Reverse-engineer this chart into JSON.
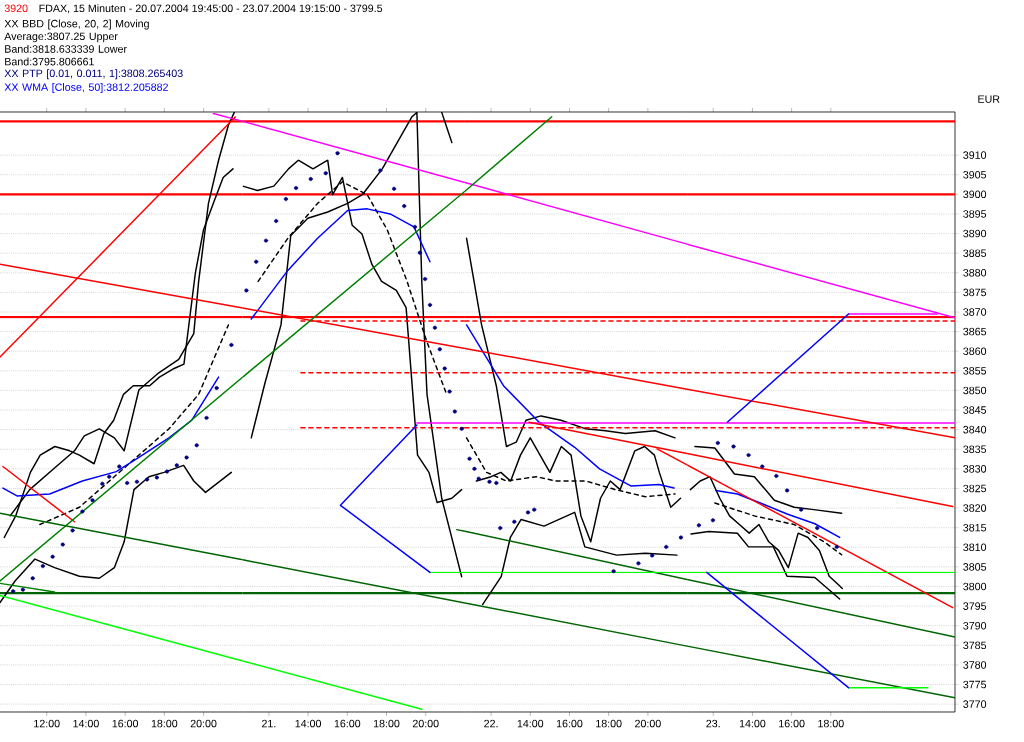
{
  "chart_data": [
    {
      "type": "line",
      "title": "FDAX, 15 Minuten - 20.07.2004 19:45:00 - 23.07.2004 19:15:00 - 3799.5",
      "annotations": [
        "3920"
      ],
      "legend": "top left",
      "xlim": [
        "2004-07-20T09:37",
        "2004-07-20T22:00"
      ],
      "ylim": [
        3768,
        3921
      ],
      "xticks": [
        {
          "value": "2004-07-20T12:00",
          "label": "12:00"
        },
        {
          "value": "2004-07-20T14:00",
          "label": "14:00"
        },
        {
          "value": "2004-07-20T16:00",
          "label": "16:00"
        },
        {
          "value": "2004-07-20T18:00",
          "label": "18:00"
        },
        {
          "value": "2004-07-20T20:00",
          "label": "20:00"
        }
      ],
      "yticks": [
        3770,
        3775,
        3780,
        3785,
        3790,
        3795,
        3800,
        3805,
        3810,
        3815,
        3820,
        3825,
        3830,
        3835,
        3840,
        3845,
        3850,
        3855,
        3860,
        3865,
        3870,
        3875,
        3880,
        3885,
        3890,
        3895,
        3900,
        3905,
        3910
      ],
      "tick_labels": "x",
      "grid": "y",
      "ref_lines": [
        {
          "axis": "y",
          "value": 3918.6,
          "color": "#ff0000"
        },
        {
          "axis": "y",
          "value": 3900,
          "color": "#ff0000"
        },
        {
          "axis": "y",
          "value": 3868.7,
          "color": "#ff0000"
        },
        {
          "axis": "y",
          "value": 3798.3,
          "color": "#006400"
        }
      ],
      "series": [
        {
          "color": "#000000",
          "x": [
            "2004-07-20T09:50",
            "2004-07-20T10:25",
            "2004-07-20T11:10",
            "2004-07-20T11:40",
            "2004-07-20T12:25",
            "2004-07-20T13:10",
            "2004-07-20T13:40",
            "2004-07-20T14:25",
            "2004-07-20T14:55",
            "2004-07-20T15:25",
            "2004-07-20T15:55",
            "2004-07-20T16:25",
            "2004-07-20T17:15",
            "2004-07-20T17:45",
            "2004-07-20T18:30",
            "2004-07-20T19:00",
            "2004-07-20T19:35",
            "2004-07-20T20:00",
            "2004-07-20T20:30",
            "2004-07-20T21:00",
            "2004-07-20T21:30"
          ],
          "values": [
            3812.5,
            3818.0,
            3829.1,
            3833.5,
            3835.7,
            3834.6,
            3833.5,
            3831.3,
            3839.0,
            3842.4,
            3849.0,
            3851.2,
            3851.2,
            3853.4,
            3855.6,
            3856.7,
            3880.0,
            3891.0,
            3897.7,
            3904.3,
            3906.5
          ]
        },
        {
          "name": "XX BBD [Close, 20, 2] Moving Average:3807.25 Upper Band:3818.633339 Lower Band:3795.806661",
          "color": "#000000",
          "line_style": "dashed",
          "x": [
            "2004-07-20T11:39",
            "2004-07-20T13:40",
            "2004-07-20T16:12",
            "2004-07-20T18:14",
            "2004-07-20T19:45",
            "2004-07-20T21:16"
          ],
          "values": [
            3815.8,
            3820.2,
            3831.3,
            3840.2,
            3849.0,
            3866.7
          ]
        },
        {
          "color": "#000000",
          "x": [
            "2004-07-20T10:08",
            "2004-07-20T11:08",
            "2004-07-20T12:24",
            "2004-07-20T13:25",
            "2004-07-20T13:55",
            "2004-07-20T14:41",
            "2004-07-20T15:27",
            "2004-07-20T15:57",
            "2004-07-20T16:42",
            "2004-07-20T17:43",
            "2004-07-20T18:44",
            "2004-07-20T19:30",
            "2004-07-20T19:45",
            "2004-07-20T20:15",
            "2004-07-20T20:46",
            "2004-07-20T21:16",
            "2004-07-20T21:34"
          ],
          "values": [
            3818.0,
            3824.7,
            3830.2,
            3834.6,
            3838.4,
            3840.2,
            3837.9,
            3834.6,
            3850.1,
            3854.5,
            3857.9,
            3864.5,
            3877.8,
            3897.7,
            3908.7,
            3917.6,
            3920.9
          ]
        },
        {
          "color": "#000000",
          "x": [
            "2004-07-20T09:37",
            "2004-07-20T10:23",
            "2004-07-20T11:24",
            "2004-07-20T12:24",
            "2004-07-20T13:40",
            "2004-07-20T14:41",
            "2004-07-20T15:27",
            "2004-07-20T15:57",
            "2004-07-20T16:27",
            "2004-07-20T17:13",
            "2004-07-20T17:59",
            "2004-07-20T18:59",
            "2004-07-20T19:30",
            "2004-07-20T20:06",
            "2004-07-20T21:25"
          ],
          "values": [
            3795.9,
            3801.4,
            3807.0,
            3804.8,
            3802.6,
            3802.1,
            3804.8,
            3811.4,
            3824.7,
            3828.0,
            3829.1,
            3830.9,
            3826.9,
            3824.0,
            3829.1
          ]
        },
        {
          "name": "XX PTP [0.01, 0.011, 1]:3808.265403",
          "type": "scatter",
          "marker": "circle",
          "color": "#000080",
          "x": [
            "2004-07-20T10:17",
            "2004-07-20T10:47",
            "2004-07-20T11:17",
            "2004-07-20T11:48",
            "2004-07-20T12:18",
            "2004-07-20T12:49",
            "2004-07-20T13:19",
            "2004-07-20T13:49",
            "2004-07-20T14:20",
            "2004-07-20T14:50",
            "2004-07-20T15:11",
            "2004-07-20T15:42",
            "2004-07-20T16:06",
            "2004-07-20T16:36",
            "2004-07-20T17:07",
            "2004-07-20T17:37",
            "2004-07-20T18:08",
            "2004-07-20T18:38",
            "2004-07-20T19:08",
            "2004-07-20T19:39",
            "2004-07-20T20:09",
            "2004-07-20T20:40",
            "2004-07-20T21:25"
          ],
          "values": [
            3798.8,
            3799.2,
            3802.1,
            3805.2,
            3807.6,
            3810.7,
            3814.3,
            3819.1,
            3822.0,
            3826.2,
            3828.0,
            3830.6,
            3826.4,
            3826.7,
            3827.3,
            3827.8,
            3829.3,
            3830.9,
            3832.9,
            3836.0,
            3843.0,
            3850.6,
            3861.6
          ]
        },
        {
          "name": "XX WMA [Close, 50]:3812.205882",
          "color": "#0000ff",
          "x": [
            "2004-07-20T09:46",
            "2004-07-20T10:29",
            "2004-07-20T12:09",
            "2004-07-20T13:49",
            "2004-07-20T15:33",
            "2004-07-20T16:42",
            "2004-07-20T18:14",
            "2004-07-20T19:24",
            "2004-07-20T20:46"
          ],
          "values": [
            3825.1,
            3823.1,
            3823.6,
            3826.9,
            3829.3,
            3832.9,
            3837.9,
            3842.4,
            3853.4
          ]
        },
        {
          "color": "#ff00ff",
          "x": [
            "2004-07-20T20:30",
            "2004-07-20T22:00"
          ],
          "values": [
            3920.6,
            3918.6
          ]
        },
        {
          "color": "#ff0000",
          "x": [
            "2004-07-20T09:37",
            "2004-07-20T22:00"
          ],
          "values": [
            3882.2,
            3871.0
          ]
        },
        {
          "color": "#ff0000",
          "x": [
            "2004-07-20T09:37",
            "2004-07-20T21:37"
          ],
          "values": [
            3858.5,
            3919.7
          ]
        },
        {
          "color": "#ff0000",
          "x": [
            "2004-07-20T09:46",
            "2004-07-20T13:25"
          ],
          "values": [
            3830.6,
            3816.5
          ]
        },
        {
          "color": "#008000",
          "x": [
            "2004-07-20T09:37",
            "2004-07-20T22:00"
          ],
          "values": [
            3801.4,
            3853.4
          ]
        },
        {
          "color": "#008000",
          "x": [
            "2004-07-20T09:37",
            "2004-07-20T12:24"
          ],
          "values": [
            3800.8,
            3798.6
          ]
        },
        {
          "color": "#006400",
          "x": [
            "2004-07-20T09:37",
            "2004-07-20T22:00"
          ],
          "values": [
            3818.7,
            3806.8
          ]
        },
        {
          "color": "#00ff00",
          "x": [
            "2004-07-20T09:37",
            "2004-07-20T22:00"
          ],
          "values": [
            3797.7,
            3781.0
          ]
        }
      ]
    },
    {
      "type": "line",
      "xlim": [
        "2004-07-21T10:40",
        "2004-07-21T22:00"
      ],
      "ylim": [
        3768,
        3921
      ],
      "xticks": [
        {
          "value": "2004-07-21T12:00",
          "label": "21."
        },
        {
          "value": "2004-07-21T14:00",
          "label": "14:00"
        },
        {
          "value": "2004-07-21T16:00",
          "label": "16:00"
        },
        {
          "value": "2004-07-21T18:00",
          "label": "18:00"
        },
        {
          "value": "2004-07-21T20:00",
          "label": "20:00"
        }
      ],
      "yticks": [
        3770,
        3775,
        3780,
        3785,
        3790,
        3795,
        3800,
        3805,
        3810,
        3815,
        3820,
        3825,
        3830,
        3835,
        3840,
        3845,
        3850,
        3855,
        3860,
        3865,
        3870,
        3875,
        3880,
        3885,
        3890,
        3895,
        3900,
        3905,
        3910
      ],
      "tick_labels": "x",
      "grid": "y",
      "ref_lines": [
        {
          "axis": "y",
          "value": 3918.6,
          "color": "#ff0000"
        },
        {
          "axis": "y",
          "value": 3900,
          "color": "#ff0000"
        },
        {
          "axis": "y",
          "value": 3868.7,
          "color": "#ff0000"
        },
        {
          "axis": "y",
          "value": 3798.3,
          "color": "#006400"
        }
      ],
      "series": [
        {
          "color": "#000000",
          "x": [
            "2004-07-21T10:40",
            "2004-07-21T11:25",
            "2004-07-21T12:15",
            "2004-07-21T13:00",
            "2004-07-21T13:30",
            "2004-07-21T14:15",
            "2004-07-21T15:00",
            "2004-07-21T15:15",
            "2004-07-21T15:45",
            "2004-07-21T16:15",
            "2004-07-21T16:45",
            "2004-07-21T17:15",
            "2004-07-21T17:45",
            "2004-07-21T18:30",
            "2004-07-21T19:00",
            "2004-07-21T19:35",
            "2004-07-21T20:10",
            "2004-07-21T20:35",
            "2004-07-21T21:20",
            "2004-07-21T21:50"
          ],
          "values": [
            3902.1,
            3901.0,
            3902.1,
            3906.5,
            3908.7,
            3906.5,
            3908.7,
            3899.9,
            3904.3,
            3892.1,
            3889.9,
            3882.2,
            3877.8,
            3875.5,
            3871.1,
            3833.5,
            3829.1,
            3821.4,
            3822.5,
            3824.7
          ]
        },
        {
          "color": "#000000",
          "line_style": "dashed",
          "x": [
            "2004-07-21T11:27",
            "2004-07-21T12:58",
            "2004-07-21T14:29",
            "2004-07-21T15:45",
            "2004-07-21T17:01",
            "2004-07-21T18:02",
            "2004-07-21T19:03",
            "2004-07-21T20:04",
            "2004-07-21T21:04"
          ],
          "values": [
            3877.8,
            3888.8,
            3897.7,
            3903.2,
            3899.9,
            3891.0,
            3877.8,
            3862.3,
            3849.0
          ]
        },
        {
          "color": "#000000",
          "x": [
            "2004-07-21T20:49",
            "2004-07-21T21:20"
          ],
          "values": [
            3920.9,
            3913.2
          ]
        },
        {
          "color": "#000000",
          "x": [
            "2004-07-21T11:06",
            "2004-07-21T11:48",
            "2004-07-21T12:37",
            "2004-07-21T13:07",
            "2004-07-21T13:59",
            "2004-07-21T15:00",
            "2004-07-21T16:01",
            "2004-07-21T16:46",
            "2004-07-21T17:47",
            "2004-07-21T18:48",
            "2004-07-21T19:18",
            "2004-07-21T19:33",
            "2004-07-21T19:48",
            "2004-07-21T20:04",
            "2004-07-21T20:49",
            "2004-07-21T21:50"
          ],
          "values": [
            3837.9,
            3851.9,
            3866.7,
            3889.5,
            3893.9,
            3895.5,
            3897.7,
            3899.9,
            3906.5,
            3915.4,
            3919.8,
            3920.9,
            3877.8,
            3849.0,
            3822.5,
            3802.5
          ]
        },
        {
          "type": "scatter",
          "marker": "circle",
          "color": "#000080",
          "x": [
            "2004-07-21T10:51",
            "2004-07-21T11:21",
            "2004-07-21T11:51",
            "2004-07-21T12:22",
            "2004-07-21T12:52",
            "2004-07-21T13:23",
            "2004-07-21T14:08",
            "2004-07-21T14:54",
            "2004-07-21T15:30",
            "2004-07-21T17:41",
            "2004-07-21T18:23",
            "2004-07-21T18:54",
            "2004-07-21T19:27",
            "2004-07-21T19:42",
            "2004-07-21T19:58",
            "2004-07-21T20:13",
            "2004-07-21T20:28",
            "2004-07-21T20:43",
            "2004-07-21T20:58",
            "2004-07-21T21:13",
            "2004-07-21T21:29",
            "2004-07-21T21:50"
          ],
          "values": [
            3875.5,
            3882.8,
            3888.2,
            3893.2,
            3898.8,
            3901.6,
            3903.9,
            3905.4,
            3910.5,
            3906.1,
            3901.4,
            3897.0,
            3891.7,
            3885.1,
            3878.4,
            3871.8,
            3866.0,
            3860.5,
            3855.6,
            3849.7,
            3844.6,
            3840.2
          ]
        },
        {
          "color": "#0000ff",
          "x": [
            "2004-07-21T11:06",
            "2004-07-21T12:58",
            "2004-07-21T14:29",
            "2004-07-21T16:01",
            "2004-07-21T17:01",
            "2004-07-21T18:11",
            "2004-07-21T19:24",
            "2004-07-21T20:13"
          ],
          "values": [
            3868.2,
            3880.6,
            3888.8,
            3895.9,
            3896.3,
            3895.0,
            3891.7,
            3882.8
          ]
        },
        {
          "color": "#ff00ff",
          "x": [
            "2004-07-21T10:40",
            "2004-07-21T22:00"
          ],
          "values": [
            3918.6,
            3903.0
          ]
        },
        {
          "color": "#ff00ff",
          "x": [
            "2004-07-21T19:33",
            "2004-07-21T22:00"
          ],
          "values": [
            3841.7,
            3841.7
          ]
        },
        {
          "color": "#ff0000",
          "x": [
            "2004-07-21T10:40",
            "2004-07-21T22:00"
          ],
          "values": [
            3871.0,
            3860.7
          ]
        },
        {
          "color": "#ff0000",
          "line_style": "dashed",
          "x": [
            "2004-07-21T13:38",
            "2004-07-21T22:00"
          ],
          "values": [
            3867.7,
            3867.7
          ]
        },
        {
          "color": "#ff0000",
          "line_style": "dashed",
          "x": [
            "2004-07-21T13:38",
            "2004-07-21T22:00"
          ],
          "values": [
            3854.5,
            3854.5
          ]
        },
        {
          "color": "#ff0000",
          "line_style": "dashed",
          "x": [
            "2004-07-21T13:38",
            "2004-07-21T22:00"
          ],
          "values": [
            3840.5,
            3840.5
          ]
        },
        {
          "color": "#008000",
          "x": [
            "2004-07-21T10:40",
            "2004-07-21T22:00"
          ],
          "values": [
            3853.4,
            3900.8
          ]
        },
        {
          "color": "#006400",
          "x": [
            "2004-07-21T10:40",
            "2004-07-21T22:00"
          ],
          "values": [
            3806.8,
            3795.8
          ]
        },
        {
          "color": "#006400",
          "x": [
            "2004-07-21T21:35",
            "2004-07-21T22:00"
          ],
          "values": [
            3814.5,
            3814.1
          ]
        },
        {
          "color": "#00ff00",
          "x": [
            "2004-07-21T10:40",
            "2004-07-21T19:48"
          ],
          "values": [
            3781.0,
            3768.7
          ]
        },
        {
          "color": "#00ff00",
          "x": [
            "2004-07-21T20:13",
            "2004-07-21T22:00"
          ],
          "values": [
            3803.6,
            3803.6
          ]
        },
        {
          "color": "#0000ff",
          "x": [
            "2004-07-21T20:13",
            "2004-07-21T15:39",
            "2004-07-21T19:33"
          ],
          "values": [
            3803.6,
            3820.7,
            3841.2
          ]
        }
      ]
    },
    {
      "type": "line",
      "xlim": [
        "2004-07-22T10:40",
        "2004-07-22T22:00"
      ],
      "ylim": [
        3768,
        3921
      ],
      "xticks": [
        {
          "value": "2004-07-22T12:00",
          "label": "22."
        },
        {
          "value": "2004-07-22T14:00",
          "label": "14:00"
        },
        {
          "value": "2004-07-22T16:00",
          "label": "16:00"
        },
        {
          "value": "2004-07-22T18:00",
          "label": "18:00"
        },
        {
          "value": "2004-07-22T20:00",
          "label": "20:00"
        }
      ],
      "yticks": [
        3770,
        3775,
        3780,
        3785,
        3790,
        3795,
        3800,
        3805,
        3810,
        3815,
        3820,
        3825,
        3830,
        3835,
        3840,
        3845,
        3850,
        3855,
        3860,
        3865,
        3870,
        3875,
        3880,
        3885,
        3890,
        3895,
        3900,
        3905,
        3910
      ],
      "tick_labels": "x",
      "grid": "y",
      "ref_lines": [
        {
          "axis": "y",
          "value": 3918.6,
          "color": "#ff0000"
        },
        {
          "axis": "y",
          "value": 3900,
          "color": "#ff0000"
        },
        {
          "axis": "y",
          "value": 3868.7,
          "color": "#ff0000"
        },
        {
          "axis": "y",
          "value": 3798.3,
          "color": "#006400"
        }
      ],
      "series": [
        {
          "color": "#000000",
          "x": [
            "2004-07-22T11:15",
            "2004-07-22T12:00",
            "2004-07-22T12:30",
            "2004-07-22T13:00",
            "2004-07-22T13:30",
            "2004-07-22T14:00",
            "2004-07-22T14:30",
            "2004-07-22T15:00",
            "2004-07-22T15:35",
            "2004-07-22T16:05",
            "2004-07-22T16:35",
            "2004-07-22T17:05",
            "2004-07-22T17:35",
            "2004-07-22T18:05",
            "2004-07-22T18:35",
            "2004-07-22T19:20",
            "2004-07-22T19:50",
            "2004-07-22T20:20",
            "2004-07-22T20:35",
            "2004-07-22T21:10",
            "2004-07-22T21:40"
          ],
          "values": [
            3826.9,
            3828.0,
            3829.1,
            3826.9,
            3833.5,
            3837.9,
            3833.5,
            3829.1,
            3835.7,
            3833.5,
            3818.0,
            3811.4,
            3822.5,
            3826.9,
            3824.7,
            3834.6,
            3835.7,
            3833.5,
            3829.1,
            3820.2,
            3822.5
          ]
        },
        {
          "color": "#000000",
          "line_style": "dashed",
          "x": [
            "2004-07-22T10:45",
            "2004-07-22T11:46",
            "2004-07-22T12:47",
            "2004-07-22T14:18",
            "2004-07-22T15:19",
            "2004-07-22T16:50",
            "2004-07-22T18:21",
            "2004-07-22T19:52",
            "2004-07-22T21:23"
          ],
          "values": [
            3837.9,
            3829.1,
            3826.9,
            3828.0,
            3826.9,
            3826.9,
            3824.7,
            3822.9,
            3823.6
          ]
        },
        {
          "color": "#000000",
          "x": [
            "2004-07-22T10:45",
            "2004-07-22T11:31",
            "2004-07-22T12:16",
            "2004-07-22T12:47",
            "2004-07-22T13:17",
            "2004-07-22T13:47",
            "2004-07-22T14:33",
            "2004-07-22T15:34",
            "2004-07-22T16:50",
            "2004-07-22T17:50",
            "2004-07-22T18:51",
            "2004-07-22T20:22",
            "2004-07-22T21:23"
          ],
          "values": [
            3888.8,
            3866.7,
            3851.2,
            3835.7,
            3836.8,
            3842.4,
            3843.5,
            3842.4,
            3840.2,
            3839.7,
            3839.0,
            3839.7,
            3837.9
          ]
        },
        {
          "color": "#000000",
          "x": [
            "2004-07-22T11:34",
            "2004-07-22T12:31",
            "2004-07-22T12:59",
            "2004-07-22T13:32",
            "2004-07-22T14:42",
            "2004-07-22T16:16",
            "2004-07-22T16:47",
            "2004-07-22T18:24",
            "2004-07-22T19:52",
            "2004-07-22T21:29"
          ],
          "values": [
            3795.4,
            3802.5,
            3812.5,
            3817.1,
            3815.4,
            3818.9,
            3810.1,
            3808.0,
            3808.5,
            3808.0
          ]
        },
        {
          "type": "scatter",
          "marker": "circle",
          "color": "#000080",
          "x": [
            "2004-07-22T10:54",
            "2004-07-22T11:09",
            "2004-07-22T11:22",
            "2004-07-22T11:55",
            "2004-07-22T12:16",
            "2004-07-22T12:28",
            "2004-07-22T13:11",
            "2004-07-22T13:53",
            "2004-07-22T14:12",
            "2004-07-22T18:15",
            "2004-07-22T19:31",
            "2004-07-22T20:13",
            "2004-07-22T20:56",
            "2004-07-22T21:41"
          ],
          "values": [
            3832.6,
            3830.0,
            3827.5,
            3826.7,
            3826.4,
            3814.9,
            3816.5,
            3818.9,
            3819.6,
            3803.9,
            3805.9,
            3807.9,
            3810.1,
            3812.5
          ]
        },
        {
          "color": "#0000ff",
          "x": [
            "2004-07-22T10:45",
            "2004-07-22T12:38",
            "2004-07-22T14:27",
            "2004-07-22T16:16",
            "2004-07-22T17:32",
            "2004-07-22T19:09",
            "2004-07-22T20:34",
            "2004-07-22T21:20"
          ],
          "values": [
            3866.7,
            3851.2,
            3841.9,
            3835.5,
            3830.0,
            3825.6,
            3826.0,
            3825.1
          ]
        },
        {
          "color": "#ff00ff",
          "x": [
            "2004-07-22T10:40",
            "2004-07-22T22:00"
          ],
          "values": [
            3903.0,
            3887.3
          ]
        },
        {
          "color": "#ff00ff",
          "x": [
            "2004-07-22T10:40",
            "2004-07-22T22:00"
          ],
          "values": [
            3841.7,
            3841.7
          ]
        },
        {
          "color": "#ff0000",
          "x": [
            "2004-07-22T10:40",
            "2004-07-22T22:00"
          ],
          "values": [
            3860.7,
            3850.3
          ]
        },
        {
          "color": "#ff0000",
          "x": [
            "2004-07-22T13:56",
            "2004-07-22T22:00"
          ],
          "values": [
            3841.9,
            3833.9
          ]
        },
        {
          "color": "#ff0000",
          "x": [
            "2004-07-22T20:28",
            "2004-07-22T22:00"
          ],
          "values": [
            3835.1,
            3831.0
          ]
        },
        {
          "color": "#ff0000",
          "line_style": "dashed",
          "x": [
            "2004-07-22T10:40",
            "2004-07-22T22:00"
          ],
          "values": [
            3867.7,
            3867.7
          ]
        },
        {
          "color": "#ff0000",
          "line_style": "dashed",
          "x": [
            "2004-07-22T10:40",
            "2004-07-22T22:00"
          ],
          "values": [
            3854.5,
            3854.5
          ]
        },
        {
          "color": "#ff0000",
          "line_style": "dashed",
          "x": [
            "2004-07-22T10:40",
            "2004-07-22T22:00"
          ],
          "values": [
            3840.5,
            3840.5
          ]
        },
        {
          "color": "#008000",
          "x": [
            "2004-07-22T10:40",
            "2004-07-22T15:06"
          ],
          "values": [
            3900.8,
            3919.8
          ]
        },
        {
          "color": "#006400",
          "x": [
            "2004-07-22T10:40",
            "2004-07-22T22:00"
          ],
          "values": [
            3795.8,
            3784.8
          ]
        },
        {
          "color": "#006400",
          "x": [
            "2004-07-22T10:40",
            "2004-07-22T22:00"
          ],
          "values": [
            3814.1,
            3801.8
          ]
        },
        {
          "color": "#00ff00",
          "x": [
            "2004-07-22T10:40",
            "2004-07-22T22:00"
          ],
          "values": [
            3803.6,
            3803.6
          ]
        }
      ]
    },
    {
      "type": "line",
      "ylabel": "EUR",
      "xlim": [
        "2004-07-23T10:40",
        "2004-07-24T00:20"
      ],
      "ylim": [
        3768,
        3921
      ],
      "xticks": [
        {
          "value": "2004-07-23T12:00",
          "label": "23."
        },
        {
          "value": "2004-07-23T14:00",
          "label": "14:00"
        },
        {
          "value": "2004-07-23T16:00",
          "label": "16:00"
        },
        {
          "value": "2004-07-23T18:00",
          "label": "18:00"
        }
      ],
      "yticks": [
        3770,
        3775,
        3780,
        3785,
        3790,
        3795,
        3800,
        3805,
        3810,
        3815,
        3820,
        3825,
        3830,
        3835,
        3840,
        3845,
        3850,
        3855,
        3860,
        3865,
        3870,
        3875,
        3880,
        3885,
        3890,
        3895,
        3900,
        3905,
        3910
      ],
      "grid": "y",
      "ref_lines": [
        {
          "axis": "y",
          "value": 3918.6,
          "color": "#ff0000"
        },
        {
          "axis": "y",
          "value": 3900,
          "color": "#ff0000"
        },
        {
          "axis": "y",
          "value": 3868.7,
          "color": "#ff0000"
        },
        {
          "axis": "y",
          "value": 3798.3,
          "color": "#006400"
        }
      ],
      "series": [
        {
          "color": "#000000",
          "x": [
            "2004-07-23T10:50",
            "2004-07-23T11:20",
            "2004-07-23T11:50",
            "2004-07-23T12:20",
            "2004-07-23T12:50",
            "2004-07-23T13:20",
            "2004-07-23T13:50",
            "2004-07-23T14:20",
            "2004-07-23T14:50",
            "2004-07-23T15:20",
            "2004-07-23T15:50",
            "2004-07-23T16:20",
            "2004-07-23T16:50",
            "2004-07-23T17:25",
            "2004-07-23T17:55",
            "2004-07-23T18:25",
            "2004-07-23T18:35"
          ],
          "values": [
            3824.7,
            3826.9,
            3828.0,
            3822.5,
            3818.0,
            3815.8,
            3813.6,
            3815.8,
            3811.4,
            3809.2,
            3804.8,
            3813.6,
            3812.5,
            3809.2,
            3802.6,
            3800.3,
            3799.5
          ]
        },
        {
          "color": "#000000",
          "line_style": "dashed",
          "x": [
            "2004-07-23T12:05",
            "2004-07-23T14:06",
            "2004-07-23T16:08",
            "2004-07-23T17:39",
            "2004-07-23T18:33"
          ],
          "values": [
            3821.3,
            3818.0,
            3815.8,
            3811.4,
            3808.1
          ]
        },
        {
          "color": "#000000",
          "x": [
            "2004-07-23T11:04",
            "2004-07-23T12:05",
            "2004-07-23T13:05",
            "2004-07-23T14:06",
            "2004-07-23T15:07",
            "2004-07-23T16:08",
            "2004-07-23T17:08",
            "2004-07-23T18:33"
          ],
          "values": [
            3835.7,
            3835.3,
            3828.7,
            3828.0,
            3822.0,
            3820.2,
            3819.6,
            3818.7
          ]
        },
        {
          "color": "#000000",
          "x": [
            "2004-07-23T10:52",
            "2004-07-23T11:46",
            "2004-07-23T13:14",
            "2004-07-23T13:48",
            "2004-07-23T15:04",
            "2004-07-23T15:46",
            "2004-07-23T17:11",
            "2004-07-23T18:27"
          ],
          "values": [
            3813.4,
            3814.0,
            3813.6,
            3810.1,
            3810.1,
            3802.6,
            3802.3,
            3796.8
          ]
        },
        {
          "type": "scatter",
          "marker": "circle",
          "color": "#000080",
          "x": [
            "2004-07-23T11:16",
            "2004-07-23T11:59",
            "2004-07-23T12:14",
            "2004-07-23T13:02",
            "2004-07-23T13:48",
            "2004-07-23T14:30",
            "2004-07-23T15:13",
            "2004-07-23T15:46",
            "2004-07-23T16:29",
            "2004-07-23T17:18",
            "2004-07-23T18:18"
          ],
          "values": [
            3815.6,
            3816.9,
            3836.6,
            3835.7,
            3833.5,
            3830.6,
            3828.2,
            3824.5,
            3819.6,
            3814.9,
            3810.1
          ]
        },
        {
          "color": "#0000ff",
          "x": [
            "2004-07-23T12:08",
            "2004-07-23T13:14",
            "2004-07-23T14:30",
            "2004-07-23T15:46",
            "2004-07-23T17:11",
            "2004-07-23T18:27"
          ],
          "values": [
            3824.5,
            3823.6,
            3821.1,
            3818.5,
            3816.0,
            3812.5
          ]
        },
        {
          "color": "#ff00ff",
          "x": [
            "2004-07-23T10:40",
            "2004-07-24T00:20"
          ],
          "values": [
            3887.3,
            3868.5
          ]
        },
        {
          "color": "#ff00ff",
          "x": [
            "2004-07-23T18:54",
            "2004-07-23T23:27"
          ],
          "values": [
            3869.5,
            3869.5
          ]
        },
        {
          "color": "#ff00ff",
          "x": [
            "2004-07-23T10:40",
            "2004-07-24T00:20"
          ],
          "values": [
            3841.7,
            3841.7
          ]
        },
        {
          "color": "#ff0000",
          "x": [
            "2004-07-23T10:40",
            "2004-07-24T00:20"
          ],
          "values": [
            3850.3,
            3837.9
          ]
        },
        {
          "color": "#ff0000",
          "x": [
            "2004-07-23T10:40",
            "2004-07-24T00:13"
          ],
          "values": [
            3833.9,
            3820.4
          ]
        },
        {
          "color": "#ff0000",
          "x": [
            "2004-07-23T10:40",
            "2004-07-24T00:13"
          ],
          "values": [
            3831.0,
            3794.6
          ]
        },
        {
          "color": "#ff0000",
          "line_style": "dashed",
          "x": [
            "2004-07-23T10:40",
            "2004-07-24T00:20"
          ],
          "values": [
            3867.7,
            3867.7
          ]
        },
        {
          "color": "#ff0000",
          "line_style": "dashed",
          "x": [
            "2004-07-23T10:40",
            "2004-07-24T00:20"
          ],
          "values": [
            3854.5,
            3854.5
          ]
        },
        {
          "color": "#ff0000",
          "line_style": "dashed",
          "x": [
            "2004-07-23T10:40",
            "2004-07-24T00:20"
          ],
          "values": [
            3840.5,
            3840.5
          ]
        },
        {
          "color": "#006400",
          "x": [
            "2004-07-23T10:40",
            "2004-07-24T00:20"
          ],
          "values": [
            3784.8,
            3771.6
          ]
        },
        {
          "color": "#006400",
          "x": [
            "2004-07-23T10:40",
            "2004-07-24T00:20"
          ],
          "values": [
            3801.8,
            3787.1
          ]
        },
        {
          "color": "#00ff00",
          "x": [
            "2004-07-23T18:54",
            "2004-07-23T22:57"
          ],
          "values": [
            3774.2,
            3774.2
          ]
        },
        {
          "color": "#00ff00",
          "x": [
            "2004-07-23T10:40",
            "2004-07-24T00:20"
          ],
          "values": [
            3803.6,
            3803.6
          ]
        },
        {
          "color": "#0000ff",
          "x": [
            "2004-07-23T12:43",
            "2004-07-23T18:54"
          ],
          "values": [
            3841.9,
            3869.5
          ]
        },
        {
          "color": "#0000ff",
          "x": [
            "2004-07-23T11:40",
            "2004-07-23T18:54"
          ],
          "values": [
            3803.6,
            3774.2
          ]
        }
      ]
    }
  ]
}
